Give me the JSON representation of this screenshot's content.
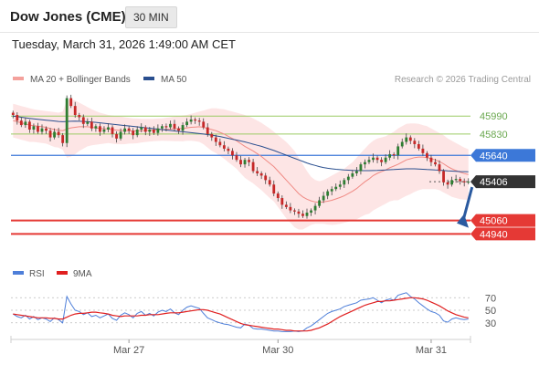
{
  "header": {
    "title": "Dow Jones (CME)",
    "timeframe": "30 MIN"
  },
  "datetime": "Tuesday, March 31, 2026 1:49:00 AM CET",
  "credit": "Research © 2026 Trading Central",
  "colors": {
    "bollinger_fill": "#fde0e0",
    "ma20": "#f08a84",
    "ma50": "#2a4f8f",
    "bull_candle": "#2e7d32",
    "bear_candle": "#c62828",
    "resistance_line": "#9ccc65",
    "pivot_line": "#3c78d8",
    "support_line": "#e53935",
    "arrow": "#2a5aa0",
    "rsi": "#4e7fd9",
    "rsi_ma": "#e02020"
  },
  "chart_data": [
    {
      "type": "candlestick",
      "legend": [
        {
          "name": "MA 20 + Bollinger Bands",
          "color": "#f4a19c"
        },
        {
          "name": "MA 50",
          "color": "#2a4f8f"
        }
      ],
      "legend_position": "top-left",
      "x_ticks": [
        "Mar 27",
        "Mar 30",
        "Mar 31"
      ],
      "ylim": [
        44870,
        46130
      ],
      "levels": [
        {
          "value": 45990,
          "label": "45990",
          "kind": "resistance"
        },
        {
          "value": 45830,
          "label": "45830",
          "kind": "resistance"
        },
        {
          "value": 45640,
          "label": "45640",
          "kind": "pivot"
        },
        {
          "value": 45406,
          "label": "45406",
          "kind": "last"
        },
        {
          "value": 45060,
          "label": "45060",
          "kind": "support"
        },
        {
          "value": 44940,
          "label": "44940",
          "kind": "support"
        }
      ],
      "close": [
        46000,
        45950,
        45910,
        45940,
        45870,
        45900,
        45850,
        45880,
        45860,
        45800,
        45850,
        45820,
        45750,
        46150,
        46080,
        46000,
        45980,
        45920,
        45940,
        45880,
        45900,
        45850,
        45870,
        45890,
        45830,
        45790,
        45850,
        45880,
        45860,
        45820,
        45870,
        45890,
        45850,
        45870,
        45840,
        45880,
        45900,
        45890,
        45920,
        45880,
        45860,
        45910,
        45940,
        45960,
        45950,
        45940,
        45890,
        45830,
        45800,
        45760,
        45730,
        45700,
        45680,
        45640,
        45600,
        45560,
        45600,
        45580,
        45500,
        45480,
        45460,
        45420,
        45380,
        45300,
        45260,
        45200,
        45180,
        45150,
        45140,
        45120,
        45100,
        45130,
        45150,
        45190,
        45240,
        45280,
        45320,
        45340,
        45360,
        45380,
        45420,
        45450,
        45480,
        45500,
        45560,
        45580,
        45600,
        45620,
        45600,
        45580,
        45620,
        45650,
        45640,
        45720,
        45760,
        45800,
        45770,
        45740,
        45700,
        45660,
        45620,
        45580,
        45560,
        45500,
        45400,
        45380,
        45420,
        45430,
        45410,
        45400,
        45406
      ],
      "ma20": [
        45950,
        45940,
        45930,
        45920,
        45910,
        45905,
        45900,
        45895,
        45890,
        45880,
        45870,
        45865,
        45860,
        45875,
        45885,
        45890,
        45895,
        45895,
        45895,
        45890,
        45885,
        45880,
        45878,
        45875,
        45870,
        45865,
        45862,
        45860,
        45860,
        45858,
        45858,
        45860,
        45862,
        45864,
        45866,
        45868,
        45870,
        45872,
        45874,
        45876,
        45878,
        45880,
        45885,
        45890,
        45893,
        45895,
        45890,
        45880,
        45870,
        45860,
        45845,
        45830,
        45810,
        45790,
        45770,
        45745,
        45720,
        45700,
        45680,
        45655,
        45630,
        45600,
        45570,
        45540,
        45500,
        45460,
        45420,
        45380,
        45340,
        45300,
        45270,
        45250,
        45235,
        45225,
        45220,
        45225,
        45232,
        45240,
        45252,
        45265,
        45280,
        45300,
        45320,
        45345,
        45375,
        45405,
        45430,
        45460,
        45480,
        45495,
        45510,
        45530,
        45545,
        45560,
        45580,
        45600,
        45610,
        45620,
        45625,
        45625,
        45620,
        45610,
        45600,
        45585,
        45565,
        45540,
        45520,
        45505,
        45490,
        45478,
        45470
      ],
      "bb_upper": [
        46100,
        46090,
        46080,
        46070,
        46060,
        46050,
        46045,
        46040,
        46035,
        46030,
        46025,
        46020,
        46030,
        46130,
        46140,
        46130,
        46110,
        46090,
        46070,
        46050,
        46035,
        46020,
        46010,
        46000,
        45995,
        45990,
        45985,
        45980,
        45975,
        45970,
        45968,
        45965,
        45965,
        45965,
        45965,
        45968,
        45970,
        45975,
        45980,
        45985,
        45990,
        45995,
        46000,
        46010,
        46020,
        46030,
        46040,
        46050,
        46060,
        46060,
        46055,
        46050,
        46040,
        46030,
        46020,
        46010,
        46000,
        45985,
        45970,
        45950,
        45930,
        45905,
        45880,
        45850,
        45820,
        45790,
        45760,
        45720,
        45680,
        45620,
        45560,
        45500,
        45450,
        45420,
        45410,
        45420,
        45440,
        45460,
        45480,
        45500,
        45520,
        45550,
        45580,
        45620,
        45660,
        45700,
        45740,
        45770,
        45790,
        45800,
        45810,
        45830,
        45850,
        45880,
        45900,
        45920,
        45925,
        45925,
        45920,
        45910,
        45900,
        45880,
        45860,
        45840,
        45820,
        45790,
        45770,
        45750,
        45730,
        45710,
        45695
      ],
      "bb_lower": [
        45800,
        45790,
        45780,
        45770,
        45760,
        45760,
        45755,
        45750,
        45745,
        45730,
        45715,
        45710,
        45690,
        45620,
        45630,
        45650,
        45680,
        45700,
        45720,
        45730,
        45735,
        45740,
        45745,
        45750,
        45745,
        45740,
        45739,
        45740,
        45745,
        45746,
        45748,
        45755,
        45759,
        45763,
        45767,
        45768,
        45770,
        45769,
        45768,
        45767,
        45766,
        45765,
        45770,
        45770,
        45766,
        45760,
        45740,
        45710,
        45680,
        45660,
        45635,
        45610,
        45580,
        45550,
        45520,
        45480,
        45440,
        45415,
        45390,
        45360,
        45330,
        45295,
        45260,
        45230,
        45180,
        45130,
        45080,
        45040,
        45000,
        44980,
        44980,
        45000,
        45020,
        45030,
        45030,
        45030,
        45024,
        45020,
        45024,
        45030,
        45040,
        45050,
        45060,
        45070,
        45090,
        45110,
        45120,
        45150,
        45170,
        45190,
        45210,
        45230,
        45240,
        45240,
        45260,
        45280,
        45295,
        45315,
        45330,
        45340,
        45340,
        45340,
        45340,
        45330,
        45310,
        45290,
        45270,
        45260,
        45250,
        45246,
        45245
      ],
      "ma50": [
        45990,
        45985,
        45980,
        45975,
        45970,
        45966,
        45962,
        45958,
        45954,
        45950,
        45946,
        45942,
        45940,
        45942,
        45944,
        45945,
        45944,
        45942,
        45940,
        45937,
        45934,
        45930,
        45926,
        45922,
        45918,
        45914,
        45910,
        45906,
        45902,
        45898,
        45894,
        45890,
        45886,
        45882,
        45878,
        45874,
        45870,
        45866,
        45862,
        45858,
        45854,
        45850,
        45846,
        45842,
        45838,
        45834,
        45830,
        45825,
        45820,
        45814,
        45808,
        45800,
        45792,
        45784,
        45776,
        45768,
        45760,
        45750,
        45740,
        45730,
        45720,
        45708,
        45696,
        45684,
        45670,
        45656,
        45642,
        45628,
        45614,
        45600,
        45586,
        45572,
        45560,
        45550,
        45540,
        45532,
        45525,
        45520,
        45516,
        45513,
        45510,
        45508,
        45506,
        45505,
        45504,
        45504,
        45504,
        45505,
        45506,
        45508,
        45510,
        45512,
        45514,
        45516,
        45518,
        45520,
        45520,
        45520,
        45518,
        45516,
        45514,
        45512,
        45510,
        45508,
        45505,
        45502,
        45500,
        45498,
        45496,
        45495,
        45494
      ]
    },
    {
      "type": "line",
      "legend": [
        {
          "name": "RSI",
          "color": "#4e7fd9"
        },
        {
          "name": "9MA",
          "color": "#e02020"
        }
      ],
      "legend_position": "top-left",
      "ylim": [
        18,
        82
      ],
      "y_ticks": [
        70,
        50,
        30
      ],
      "rsi": [
        44,
        40,
        38,
        42,
        36,
        40,
        35,
        38,
        36,
        32,
        38,
        35,
        30,
        72,
        60,
        50,
        48,
        43,
        46,
        40,
        42,
        38,
        41,
        44,
        37,
        34,
        42,
        46,
        43,
        38,
        45,
        48,
        42,
        45,
        41,
        47,
        50,
        48,
        52,
        46,
        43,
        50,
        55,
        57,
        55,
        53,
        45,
        38,
        35,
        32,
        30,
        28,
        27,
        25,
        23,
        22,
        28,
        26,
        21,
        20,
        20,
        19,
        18,
        17,
        17,
        16,
        16,
        16,
        17,
        16,
        17,
        22,
        25,
        30,
        35,
        40,
        45,
        48,
        50,
        52,
        56,
        58,
        60,
        62,
        66,
        67,
        68,
        70,
        66,
        62,
        66,
        68,
        66,
        74,
        76,
        78,
        72,
        68,
        62,
        57,
        52,
        48,
        46,
        42,
        33,
        31,
        36,
        38,
        36,
        35,
        36
      ],
      "ma9": [
        44,
        43,
        42,
        41,
        40,
        39,
        38,
        38,
        38,
        37,
        37,
        36,
        36,
        39,
        42,
        44,
        45,
        45,
        46,
        47,
        47,
        46,
        45,
        44,
        42,
        41,
        40,
        41,
        41,
        41,
        41,
        42,
        42,
        43,
        43,
        43,
        44,
        45,
        46,
        46,
        46,
        47,
        48,
        49,
        50,
        51,
        51,
        50,
        48,
        46,
        44,
        41,
        38,
        35,
        32,
        29,
        27,
        26,
        25,
        24,
        23,
        22,
        21,
        20,
        20,
        19,
        18,
        18,
        17,
        17,
        17,
        17,
        18,
        20,
        22,
        25,
        28,
        32,
        36,
        40,
        43,
        46,
        49,
        52,
        55,
        58,
        60,
        62,
        64,
        64,
        65,
        65,
        66,
        67,
        68,
        69,
        70,
        70,
        69,
        68,
        66,
        63,
        60,
        57,
        53,
        49,
        46,
        43,
        41,
        39,
        38
      ]
    }
  ]
}
